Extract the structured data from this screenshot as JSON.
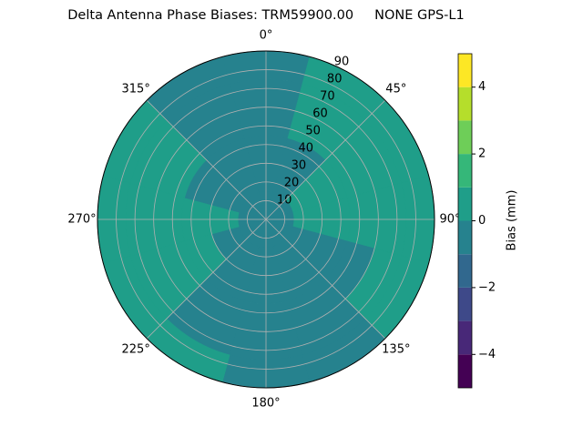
{
  "chart_data": {
    "type": "polar-contour",
    "title": "Delta Antenna Phase Biases: TRM59900.00     NONE GPS-L1",
    "colorbar_label": "Bias (mm)",
    "rlim": [
      0,
      90
    ],
    "rticks": [
      10,
      20,
      30,
      40,
      50,
      60,
      70,
      80,
      90
    ],
    "thetaticks": [
      {
        "value": 0,
        "label": "0°"
      },
      {
        "value": 45,
        "label": "45°"
      },
      {
        "value": 90,
        "label": "90°"
      },
      {
        "value": 135,
        "label": "135°"
      },
      {
        "value": 180,
        "label": "180°"
      },
      {
        "value": 225,
        "label": "225°"
      },
      {
        "value": 270,
        "label": "270°"
      },
      {
        "value": 315,
        "label": "315°"
      }
    ],
    "grid": true,
    "azimuths": [
      0,
      30,
      60,
      90,
      120,
      150,
      180,
      210,
      240,
      270,
      300,
      330
    ],
    "radii": [
      0,
      15,
      30,
      45,
      60,
      75,
      90
    ],
    "values": [
      [
        -0.5,
        -0.5,
        -0.5,
        -0.5,
        -0.5,
        -0.5
      ],
      [
        -0.5,
        -0.5,
        -0.5,
        0.5,
        0.5,
        0.5
      ],
      [
        -0.5,
        0.5,
        0.5,
        0.5,
        0.5,
        0.5
      ],
      [
        -0.5,
        0.5,
        0.5,
        0.5,
        0.5,
        0.5
      ],
      [
        -0.5,
        -0.5,
        -0.5,
        -0.5,
        0.5,
        0.5
      ],
      [
        -0.5,
        -0.5,
        -0.5,
        -0.5,
        -0.5,
        -0.5
      ],
      [
        -0.5,
        -0.5,
        -0.5,
        -0.5,
        -0.5,
        -0.5
      ],
      [
        -0.5,
        -0.5,
        -0.5,
        -0.5,
        -0.5,
        0.5
      ],
      [
        -0.5,
        -0.5,
        0.5,
        0.5,
        0.5,
        0.5
      ],
      [
        -0.5,
        0.5,
        0.5,
        0.5,
        0.5,
        0.5
      ],
      [
        -0.5,
        -0.5,
        -0.5,
        0.5,
        0.5,
        0.5
      ],
      [
        -0.5,
        -0.5,
        -0.5,
        -0.5,
        -0.5,
        -0.5
      ]
    ],
    "levels": [
      -5,
      -4,
      -3,
      -2,
      -1,
      0,
      1,
      2,
      3,
      4,
      5
    ],
    "colors": [
      "#440154",
      "#482878",
      "#3e4989",
      "#31688e",
      "#26828e",
      "#1f9e89",
      "#35b779",
      "#6ece58",
      "#b5de2b",
      "#fde725"
    ],
    "clim": [
      -5,
      5
    ],
    "cticks": [
      {
        "value": -4,
        "label": "−4"
      },
      {
        "value": -2,
        "label": "−2"
      },
      0,
      2,
      4
    ]
  }
}
